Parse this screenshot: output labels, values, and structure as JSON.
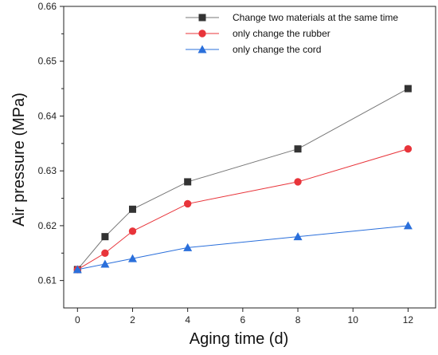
{
  "chart_data": {
    "type": "line",
    "title": "",
    "xlabel": "Aging time (d)",
    "ylabel": "Air pressure (MPa)",
    "xlim": [
      -0.5,
      13
    ],
    "ylim": [
      0.605,
      0.66
    ],
    "xticks": [
      0,
      2,
      4,
      6,
      8,
      10,
      12
    ],
    "yticks": [
      0.61,
      0.62,
      0.63,
      0.64,
      0.65,
      0.66
    ],
    "xtick_labels": [
      "0",
      "2",
      "4",
      "6",
      "8",
      "10",
      "12"
    ],
    "ytick_labels": [
      "0.61",
      "0.62",
      "0.63",
      "0.64",
      "0.65",
      "0.66"
    ],
    "grid": false,
    "legend_position": "top-right",
    "x": [
      0,
      1,
      2,
      4,
      8,
      12
    ],
    "series": [
      {
        "name": "Change two materials at the same time",
        "values": [
          0.612,
          0.618,
          0.623,
          0.628,
          0.634,
          0.645
        ],
        "color": "#333333",
        "marker": "square",
        "line_color": "#777777"
      },
      {
        "name": "only change the rubber",
        "values": [
          0.612,
          0.615,
          0.619,
          0.624,
          0.628,
          0.634
        ],
        "color": "#e8343a",
        "marker": "circle",
        "line_color": "#e8343a"
      },
      {
        "name": "only change the cord",
        "values": [
          0.612,
          0.613,
          0.614,
          0.616,
          0.618,
          0.62
        ],
        "color": "#2a6fdb",
        "marker": "triangle",
        "line_color": "#2a6fdb"
      }
    ]
  }
}
